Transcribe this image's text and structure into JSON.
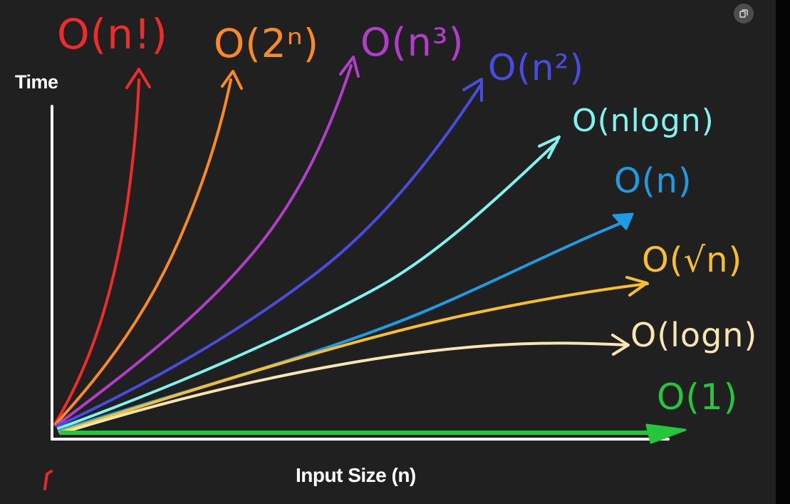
{
  "app": {
    "corner_icon": "copy-icon",
    "side_strip_color": "#050505"
  },
  "chart_data": {
    "type": "line",
    "title": "",
    "xlabel": "Input Size (n)",
    "ylabel": "Time",
    "background": "#202020",
    "grid": false,
    "legend": "none",
    "series": [
      {
        "name": "O(n!)",
        "color": "#ef2b2b"
      },
      {
        "name": "O(2ⁿ)",
        "color": "#fb8a24"
      },
      {
        "name": "O(n³)",
        "color": "#b13ec8"
      },
      {
        "name": "O(n²)",
        "color": "#4a4be0"
      },
      {
        "name": "O(nlogn)",
        "color": "#7ff3ee"
      },
      {
        "name": "O(n)",
        "color": "#1e9be2"
      },
      {
        "name": "O(√n)",
        "color": "#f7c02b"
      },
      {
        "name": "O(logn)",
        "color": "#f8e6b2"
      },
      {
        "name": "O(1)",
        "color": "#26c63c"
      }
    ],
    "marks": {
      "small_red_mark_color": "#e62929"
    }
  }
}
